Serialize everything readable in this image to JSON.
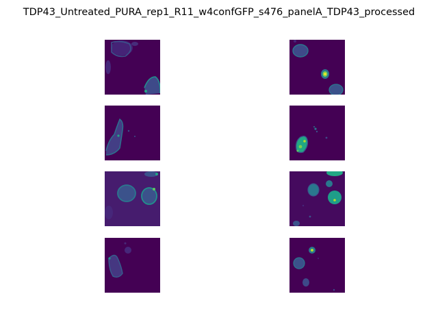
{
  "figure": {
    "title": "TDP43_Untreated_PURA_rep1_R11_w4confGFP_s476_panelA_TDP43_processed",
    "colors": {
      "background": "#440154",
      "dim": "#46277a",
      "mid": "#3b528b",
      "cell": "#2a788e",
      "bright": "#22a884",
      "hot": "#7ad151",
      "peak": "#fde725"
    },
    "colormap": "viridis",
    "panel_grid": {
      "rows": 4,
      "columns": 2,
      "column_descriptions": [
        "left column: dim cytoplasmic/outline signal",
        "right column: nuclear signal with bright puncta"
      ]
    }
  }
}
